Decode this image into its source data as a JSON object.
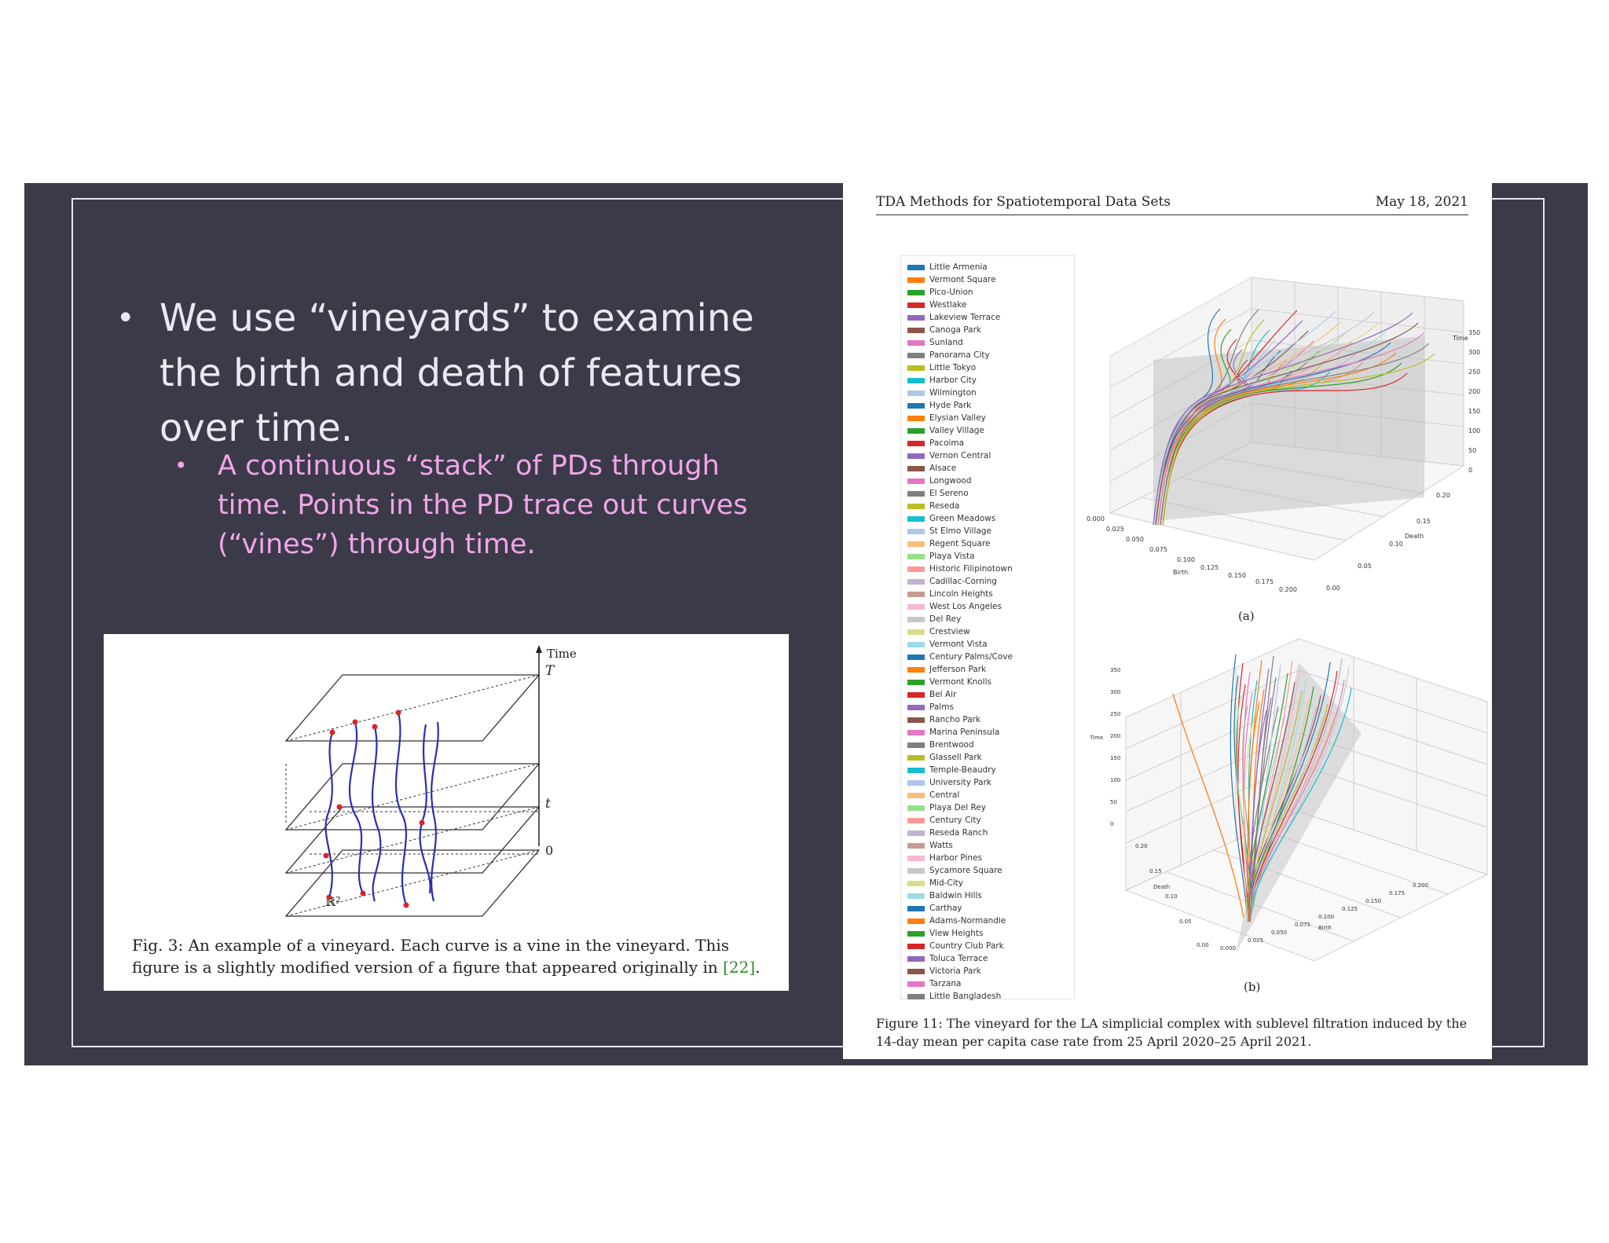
{
  "slide": {
    "main_bullet": "We use “vineyards” to examine the birth and death of features over time.",
    "sub_bullet": "A continuous “stack” of PDs through time. Points in the PD trace out curves (“vines”) through time.",
    "bullet_glyph": "•"
  },
  "fig3": {
    "time_label": "Time",
    "label_T": "T",
    "label_t": "t",
    "label_0": "0",
    "label_R2": "ℝ²",
    "caption_pre": "Fig. 3:  An example of a vineyard.  Each curve is a vine in the vineyard.  This figure is a slightly modified version of a figure that appeared originally in ",
    "caption_ref": "[22]",
    "caption_post": "."
  },
  "paper": {
    "header_left": "TDA Methods for Spatiotemporal Data Sets",
    "header_right": "May 18, 2021",
    "subfig_a": "(a)",
    "subfig_b": "(b)",
    "caption": "Figure 11:  The vineyard for the LA simplicial complex with sublevel filtration induced by the 14-day mean per capita case rate from 25 April 2020–25 April 2021.",
    "legend": [
      "Little Armenia",
      "Vermont Square",
      "Pico-Union",
      "Westlake",
      "Lakeview Terrace",
      "Canoga Park",
      "Sunland",
      "Panorama City",
      "Little Tokyo",
      "Harbor City",
      "Wilmington",
      "Hyde Park",
      "Elysian Valley",
      "Valley Village",
      "Pacoima",
      "Vernon Central",
      "Alsace",
      "Longwood",
      "El Sereno",
      "Reseda",
      "Green Meadows",
      "St Elmo Village",
      "Regent Square",
      "Playa Vista",
      "Historic Filipinotown",
      "Cadillac-Corning",
      "Lincoln Heights",
      "West Los Angeles",
      "Del Rey",
      "Crestview",
      "Vermont Vista",
      "Century Palms/Cove",
      "Jefferson Park",
      "Vermont Knolls",
      "Bel Air",
      "Palms",
      "Rancho Park",
      "Marina Peninsula",
      "Brentwood",
      "Glassell Park",
      "Temple-Beaudry",
      "University Park",
      "Central",
      "Playa Del Rey",
      "Century City",
      "Reseda Ranch",
      "Watts",
      "Harbor Pines",
      "Sycamore Square",
      "Mid-City",
      "Baldwin Hills",
      "Carthay",
      "Adams-Normandie",
      "View Heights",
      "Country Club Park",
      "Toluca Terrace",
      "Victoria Park",
      "Tarzana",
      "Little Bangladesh"
    ],
    "palette": [
      "#1f77b4",
      "#ff7f0e",
      "#2ca02c",
      "#d62728",
      "#9467bd",
      "#8c564b",
      "#e377c2",
      "#7f7f7f",
      "#bcbd22",
      "#17becf",
      "#aec7e8",
      "#1f77b4",
      "#ff7f0e",
      "#2ca02c",
      "#d62728",
      "#9467bd",
      "#8c564b",
      "#e377c2",
      "#7f7f7f",
      "#bcbd22",
      "#17becf",
      "#aec7e8",
      "#ffbb78",
      "#98df8a",
      "#ff9896",
      "#c5b0d5",
      "#c49c94",
      "#f7b6d2",
      "#c7c7c7",
      "#dbdb8d",
      "#9edae5",
      "#1f77b4",
      "#ff7f0e",
      "#2ca02c",
      "#d62728",
      "#9467bd",
      "#8c564b",
      "#e377c2",
      "#7f7f7f",
      "#bcbd22",
      "#17becf",
      "#aec7e8",
      "#ffbb78",
      "#98df8a",
      "#ff9896",
      "#c5b0d5",
      "#c49c94",
      "#f7b6d2",
      "#c7c7c7",
      "#dbdb8d",
      "#9edae5",
      "#1f77b4",
      "#ff7f0e",
      "#2ca02c",
      "#d62728",
      "#9467bd",
      "#8c564b",
      "#e377c2",
      "#7f7f7f"
    ],
    "plot_a": {
      "time_label": "Time",
      "birth_label": "Birth",
      "death_label": "Death",
      "time_ticks": [
        "350",
        "300",
        "250",
        "200",
        "150",
        "100",
        "50",
        "0"
      ],
      "birth_ticks": [
        "0.000",
        "0.025",
        "0.050",
        "0.075",
        "0.100",
        "0.125",
        "0.150",
        "0.175",
        "0.200"
      ],
      "death_ticks": [
        "0.20",
        "0.15",
        "0.10",
        "0.05",
        "0.00"
      ]
    },
    "plot_b": {
      "time_label": "Time",
      "birth_label": "Birth",
      "death_label": "Death",
      "time_ticks": [
        "350",
        "300",
        "250",
        "200",
        "150",
        "100",
        "50",
        "0"
      ],
      "death_ticks": [
        "0.20",
        "0.15",
        "0.10",
        "0.05",
        "0.00"
      ],
      "birth_ticks": [
        "0.000",
        "0.025",
        "0.050",
        "0.075",
        "0.100",
        "0.125",
        "0.150",
        "0.175",
        "0.200"
      ]
    }
  }
}
